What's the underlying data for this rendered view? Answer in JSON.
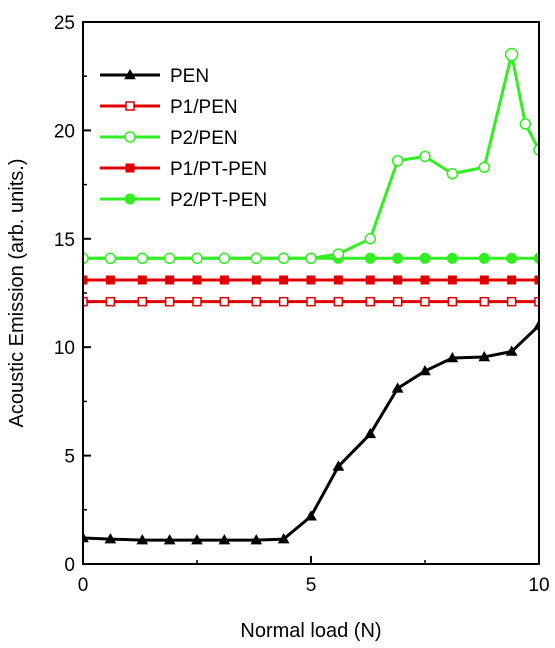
{
  "chart_data": {
    "type": "line",
    "xlabel": "Normal load (N)",
    "ylabel": "Acoustic Emission  (arb. units.)",
    "xlim": [
      0,
      10
    ],
    "ylim": [
      0,
      25
    ],
    "xticks": [
      0,
      5,
      10
    ],
    "yticks": [
      0,
      5,
      10,
      15,
      20,
      25
    ],
    "grid": false,
    "legend": "top-left",
    "series": [
      {
        "name": "PEN",
        "color": "#000000",
        "marker": "triangle-filled",
        "x": [
          0,
          0.6,
          1.3,
          1.9,
          2.5,
          3.1,
          3.8,
          4.4,
          5.0,
          5.6,
          6.3,
          6.9,
          7.5,
          8.1,
          8.8,
          9.4,
          10.0
        ],
        "y": [
          1.2,
          1.15,
          1.1,
          1.1,
          1.1,
          1.1,
          1.1,
          1.15,
          2.2,
          4.5,
          6.0,
          8.1,
          8.9,
          9.5,
          9.55,
          9.8,
          11.0
        ]
      },
      {
        "name": "P1/PEN",
        "color": "#e00000",
        "marker": "square-open",
        "x": [
          0,
          0.6,
          1.3,
          1.9,
          2.5,
          3.1,
          3.8,
          4.4,
          5.0,
          5.6,
          6.3,
          6.9,
          7.5,
          8.1,
          8.8,
          9.4,
          10.0
        ],
        "y": [
          12.1,
          12.1,
          12.1,
          12.1,
          12.1,
          12.1,
          12.1,
          12.1,
          12.1,
          12.1,
          12.1,
          12.1,
          12.1,
          12.1,
          12.1,
          12.1,
          12.1
        ]
      },
      {
        "name": "P2/PEN",
        "color": "#33ee22",
        "marker": "circle-open",
        "x": [
          0,
          0.6,
          1.3,
          1.9,
          2.5,
          3.1,
          3.8,
          4.4,
          5.0,
          5.6,
          6.3,
          6.9,
          7.5,
          8.1,
          8.8,
          9.4,
          9.7,
          10.0
        ],
        "y": [
          14.1,
          14.1,
          14.1,
          14.1,
          14.1,
          14.1,
          14.1,
          14.1,
          14.1,
          14.3,
          15.0,
          18.6,
          18.8,
          18.0,
          18.3,
          23.5,
          20.3,
          19.1
        ]
      },
      {
        "name": "P1/PT-PEN",
        "color": "#e00000",
        "marker": "square-filled",
        "x": [
          0,
          0.6,
          1.3,
          1.9,
          2.5,
          3.1,
          3.8,
          4.4,
          5.0,
          5.6,
          6.3,
          6.9,
          7.5,
          8.1,
          8.8,
          9.4,
          10.0
        ],
        "y": [
          13.1,
          13.1,
          13.1,
          13.1,
          13.1,
          13.1,
          13.1,
          13.1,
          13.1,
          13.1,
          13.1,
          13.1,
          13.1,
          13.1,
          13.1,
          13.1,
          13.1
        ]
      },
      {
        "name": "P2/PT-PEN",
        "color": "#33ee22",
        "marker": "circle-filled",
        "x": [
          0,
          0.6,
          1.3,
          1.9,
          2.5,
          3.1,
          3.8,
          4.4,
          5.0,
          5.6,
          6.3,
          6.9,
          7.5,
          8.1,
          8.8,
          9.4,
          10.0
        ],
        "y": [
          14.1,
          14.1,
          14.1,
          14.1,
          14.1,
          14.1,
          14.1,
          14.1,
          14.1,
          14.1,
          14.1,
          14.1,
          14.1,
          14.1,
          14.1,
          14.1,
          14.1
        ]
      }
    ]
  }
}
